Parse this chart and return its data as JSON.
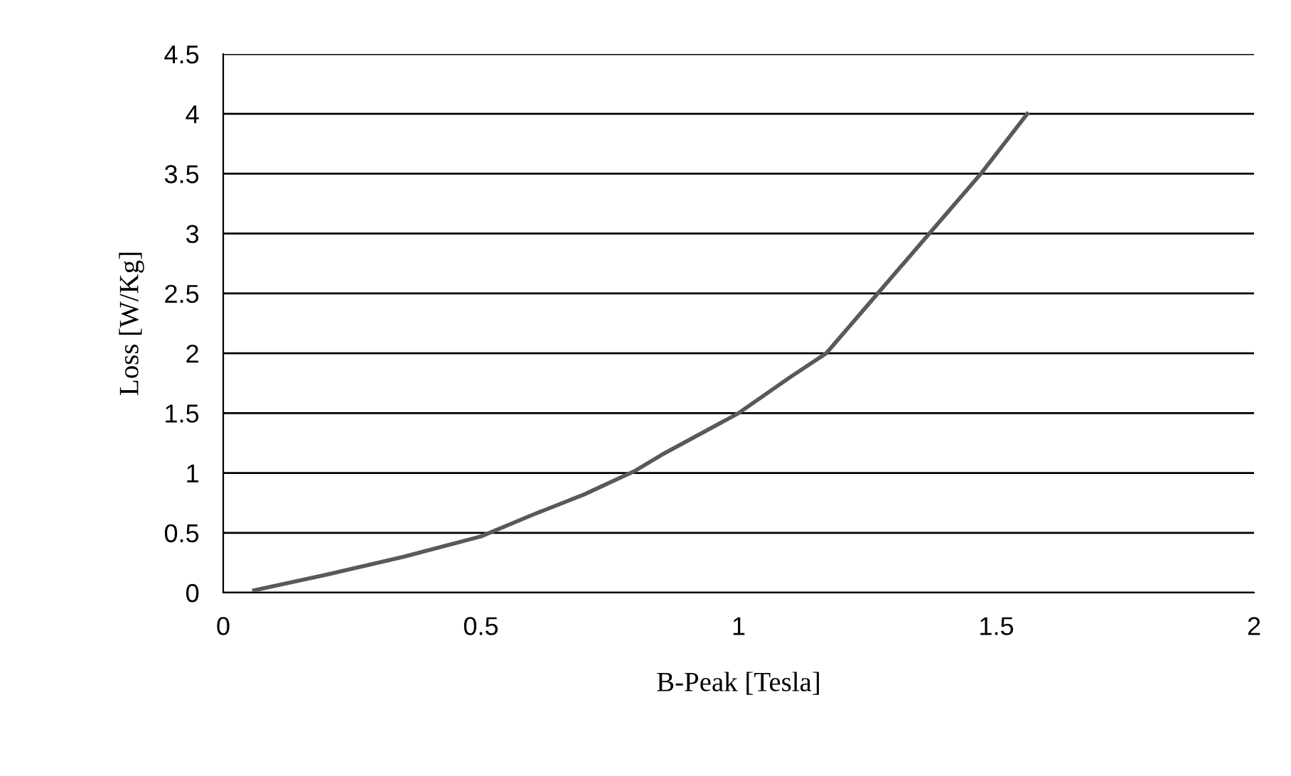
{
  "chart_data": {
    "type": "line",
    "xlabel": "B-Peak [Tesla]",
    "ylabel": "Loss [W/Kg]",
    "x": [
      0.06,
      0.2,
      0.35,
      0.5,
      0.6,
      0.7,
      0.8,
      0.85,
      1.0,
      1.1,
      1.17,
      1.27,
      1.37,
      1.47,
      1.56
    ],
    "series": [
      {
        "color": "#595959",
        "values": [
          0.02,
          0.15,
          0.3,
          0.47,
          0.65,
          0.82,
          1.02,
          1.15,
          1.5,
          1.8,
          2.0,
          2.5,
          3.0,
          3.5,
          4.0
        ]
      }
    ],
    "xlim": [
      0,
      2
    ],
    "xticks": [
      0,
      0.5,
      1,
      1.5,
      2
    ],
    "ylim": [
      0,
      4.5
    ],
    "yticks": [
      0,
      0.5,
      1,
      1.5,
      2,
      2.5,
      3,
      3.5,
      4,
      4.5
    ],
    "grid": "y",
    "marker": "none",
    "line_style": "solid",
    "legend": false
  }
}
